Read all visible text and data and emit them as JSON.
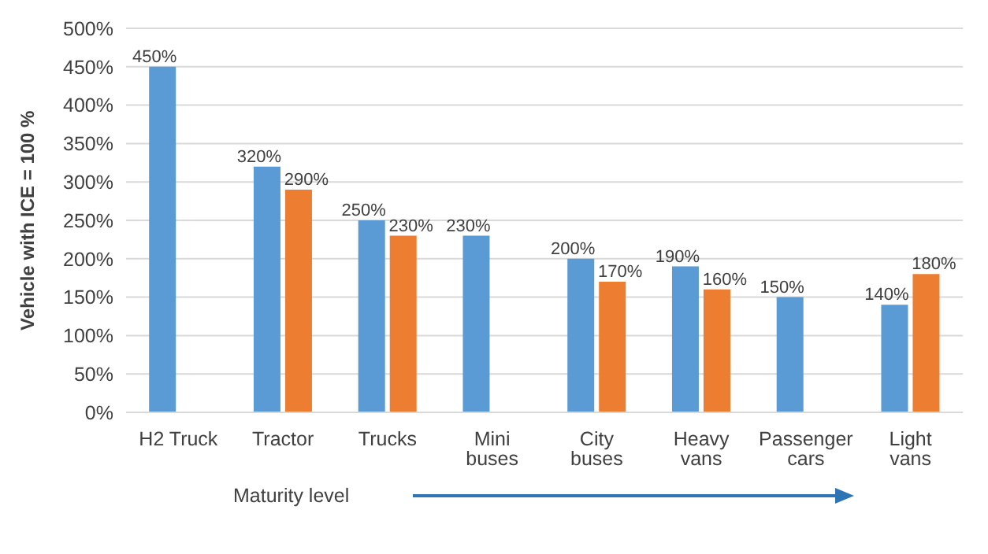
{
  "chart_data": {
    "type": "bar",
    "ylabel": "Vehicle with ICE = 100 %",
    "categories": [
      "H2 Truck",
      "Tractor",
      "Trucks",
      "Mini buses",
      "City buses",
      "Heavy vans",
      "Passenger cars",
      "Light vans"
    ],
    "series": [
      {
        "color": "#5b9bd5",
        "values": [
          450,
          320,
          250,
          230,
          200,
          190,
          150,
          140
        ],
        "value_labels": [
          "450%",
          "320%",
          "250%",
          "230%",
          "200%",
          "190%",
          "150%",
          "140%"
        ]
      },
      {
        "color": "#ed7d31",
        "values": [
          null,
          290,
          230,
          null,
          170,
          160,
          null,
          180
        ],
        "value_labels": [
          null,
          "290%",
          "230%",
          null,
          "170%",
          "160%",
          null,
          "180%"
        ]
      }
    ],
    "ylim": [
      0,
      500
    ],
    "yticks": [
      {
        "value": 0,
        "label": "0%"
      },
      {
        "value": 50,
        "label": "50%"
      },
      {
        "value": 100,
        "label": "100%"
      },
      {
        "value": 150,
        "label": "150%"
      },
      {
        "value": 200,
        "label": "200%"
      },
      {
        "value": 250,
        "label": "250%"
      },
      {
        "value": 300,
        "label": "300%"
      },
      {
        "value": 350,
        "label": "350%"
      },
      {
        "value": 400,
        "label": "400%"
      },
      {
        "value": 450,
        "label": "450%"
      },
      {
        "value": 500,
        "label": "500%"
      }
    ],
    "grid": "y",
    "legend": false,
    "annotations": [
      "Maturity level"
    ]
  }
}
